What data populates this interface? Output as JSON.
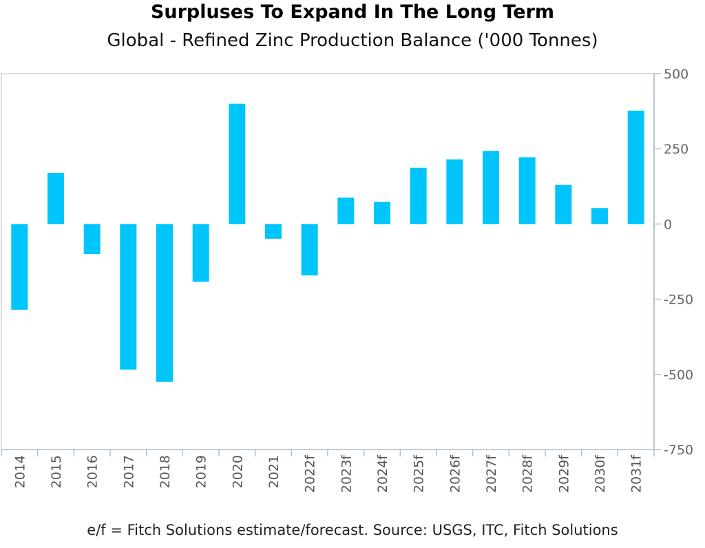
{
  "chart_data": {
    "type": "bar",
    "title": "Surpluses To Expand In The Long Term",
    "subtitle": "Global - Refined Zinc Production Balance ('000 Tonnes)",
    "categories": [
      "2014",
      "2015",
      "2016",
      "2017",
      "2018",
      "2019",
      "2020",
      "2021",
      "2022f",
      "2023f",
      "2024f",
      "2025f",
      "2026f",
      "2027f",
      "2028f",
      "2029f",
      "2030f",
      "2031f"
    ],
    "values": [
      -285,
      170,
      -100,
      -484,
      -525,
      -192,
      400,
      -49,
      -171,
      88,
      74,
      187,
      215,
      243,
      222,
      130,
      53,
      377
    ],
    "ylim": [
      -750,
      500
    ],
    "yticks": [
      500,
      250,
      0,
      -250,
      -500,
      -750
    ],
    "yaxis_side": "right",
    "grid": false,
    "bar_color": "#00c5fb",
    "footnote": "e/f = Fitch Solutions estimate/forecast. Source: USGS, ITC, Fitch Solutions"
  }
}
